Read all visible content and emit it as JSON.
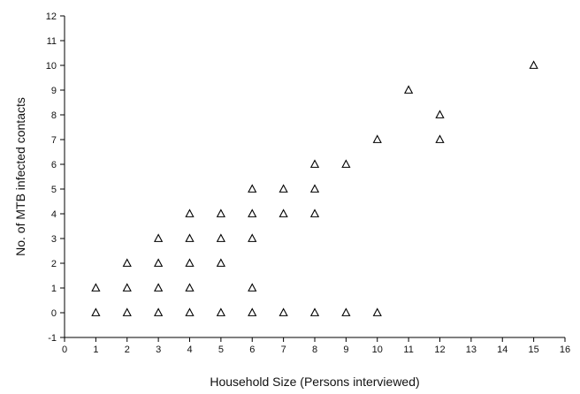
{
  "chart_data": {
    "type": "scatter",
    "title": "",
    "xlabel": "Household Size (Persons interviewed)",
    "ylabel": "No. of MTB infected contacts",
    "xlim": [
      0,
      16
    ],
    "ylim": [
      -1,
      12
    ],
    "xticks": [
      0,
      1,
      2,
      3,
      4,
      5,
      6,
      7,
      8,
      9,
      10,
      11,
      12,
      13,
      14,
      15,
      16
    ],
    "yticks": [
      -1,
      0,
      1,
      2,
      3,
      4,
      5,
      6,
      7,
      8,
      9,
      10,
      11,
      12
    ],
    "grid": false,
    "marker": "open-triangle",
    "marker_color": "#000000",
    "series": [
      {
        "points": [
          {
            "x": 1,
            "y": 0
          },
          {
            "x": 1,
            "y": 1
          },
          {
            "x": 2,
            "y": 0
          },
          {
            "x": 2,
            "y": 1
          },
          {
            "x": 2,
            "y": 2
          },
          {
            "x": 3,
            "y": 0
          },
          {
            "x": 3,
            "y": 1
          },
          {
            "x": 3,
            "y": 2
          },
          {
            "x": 3,
            "y": 3
          },
          {
            "x": 4,
            "y": 0
          },
          {
            "x": 4,
            "y": 1
          },
          {
            "x": 4,
            "y": 2
          },
          {
            "x": 4,
            "y": 3
          },
          {
            "x": 4,
            "y": 4
          },
          {
            "x": 5,
            "y": 0
          },
          {
            "x": 5,
            "y": 2
          },
          {
            "x": 5,
            "y": 3
          },
          {
            "x": 5,
            "y": 4
          },
          {
            "x": 6,
            "y": 0
          },
          {
            "x": 6,
            "y": 1
          },
          {
            "x": 6,
            "y": 3
          },
          {
            "x": 6,
            "y": 4
          },
          {
            "x": 6,
            "y": 5
          },
          {
            "x": 7,
            "y": 0
          },
          {
            "x": 7,
            "y": 4
          },
          {
            "x": 7,
            "y": 5
          },
          {
            "x": 8,
            "y": 0
          },
          {
            "x": 8,
            "y": 4
          },
          {
            "x": 8,
            "y": 5
          },
          {
            "x": 8,
            "y": 6
          },
          {
            "x": 9,
            "y": 0
          },
          {
            "x": 9,
            "y": 6
          },
          {
            "x": 10,
            "y": 0
          },
          {
            "x": 10,
            "y": 7
          },
          {
            "x": 11,
            "y": 9
          },
          {
            "x": 12,
            "y": 7
          },
          {
            "x": 12,
            "y": 8
          },
          {
            "x": 15,
            "y": 10
          }
        ]
      }
    ]
  }
}
